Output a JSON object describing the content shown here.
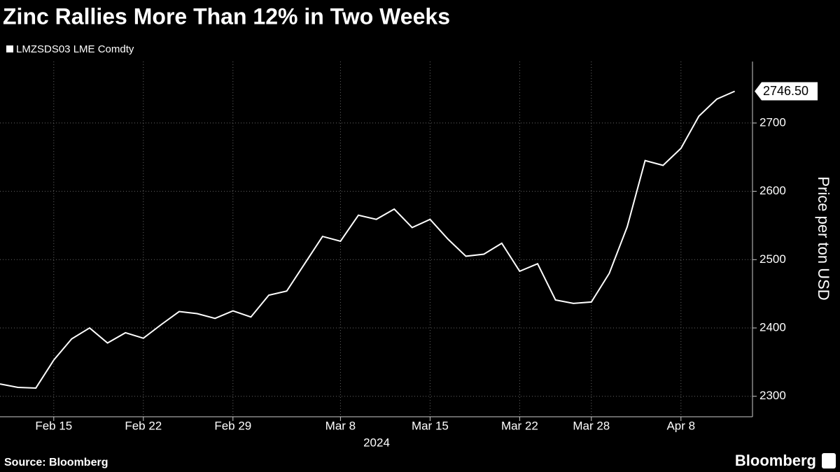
{
  "chart_data": {
    "type": "line",
    "title": "Zinc Rallies More Than 12% in Two Weeks",
    "source": "Source: Bloomberg",
    "brand": "Bloomberg",
    "y_label": "Price per ton USD",
    "x_label": "2024",
    "x": [
      "2024-02-12",
      "2024-02-13",
      "2024-02-14",
      "2024-02-15",
      "2024-02-16",
      "2024-02-19",
      "2024-02-20",
      "2024-02-21",
      "2024-02-22",
      "2024-02-23",
      "2024-02-26",
      "2024-02-27",
      "2024-02-28",
      "2024-02-29",
      "2024-03-01",
      "2024-03-04",
      "2024-03-05",
      "2024-03-06",
      "2024-03-07",
      "2024-03-08",
      "2024-03-11",
      "2024-03-12",
      "2024-03-13",
      "2024-03-14",
      "2024-03-15",
      "2024-03-18",
      "2024-03-19",
      "2024-03-20",
      "2024-03-21",
      "2024-03-22",
      "2024-03-25",
      "2024-03-26",
      "2024-03-27",
      "2024-03-28",
      "2024-04-02",
      "2024-04-03",
      "2024-04-04",
      "2024-04-05",
      "2024-04-08",
      "2024-04-09",
      "2024-04-10",
      "2024-04-11"
    ],
    "series": [
      {
        "name": "LMZSDS03 LME Comdty",
        "color": "#ffffff",
        "values": [
          2318,
          2313,
          2312,
          2353,
          2384,
          2400,
          2378,
          2393,
          2385,
          2405,
          2424,
          2421,
          2414,
          2425,
          2416,
          2448,
          2454,
          2494,
          2534,
          2527,
          2565,
          2559,
          2574,
          2547,
          2559,
          2530,
          2505,
          2508,
          2524,
          2483,
          2494,
          2441,
          2436,
          2438,
          2480,
          2548,
          2645,
          2638,
          2663,
          2710,
          2735,
          2746.5
        ]
      }
    ],
    "last_value": {
      "value": 2746.5,
      "label": "2746.50"
    },
    "xticks": [
      {
        "value": "2024-02-15",
        "label": "Feb 15"
      },
      {
        "value": "2024-02-22",
        "label": "Feb 22"
      },
      {
        "value": "2024-02-29",
        "label": "Feb 29"
      },
      {
        "value": "2024-03-08",
        "label": "Mar 8"
      },
      {
        "value": "2024-03-15",
        "label": "Mar 15"
      },
      {
        "value": "2024-03-22",
        "label": "Mar 22"
      },
      {
        "value": "2024-03-28",
        "label": "Mar 28"
      },
      {
        "value": "2024-04-08",
        "label": "Apr 8"
      }
    ],
    "ylim": [
      2270,
      2790
    ],
    "yticks": [
      2300,
      2400,
      2500,
      2600,
      2700
    ],
    "grid": true
  }
}
